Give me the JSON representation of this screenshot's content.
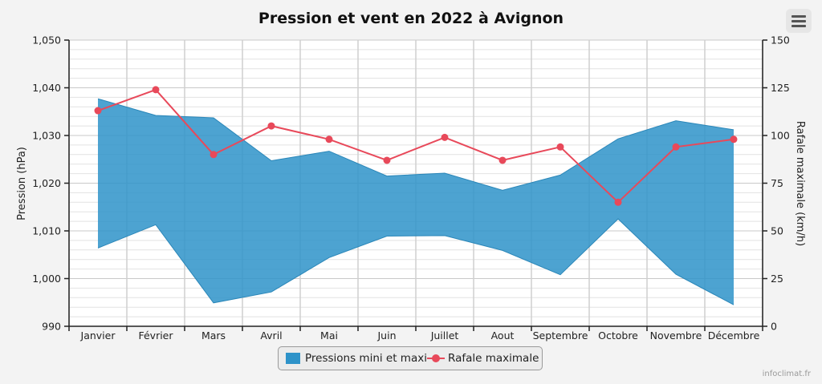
{
  "chart_data": {
    "type": "area",
    "title": "Pression et vent en 2022 à Avignon",
    "categories": [
      "Janvier",
      "Février",
      "Mars",
      "Avril",
      "Mai",
      "Juin",
      "Juillet",
      "Aout",
      "Septembre",
      "Octobre",
      "Novembre",
      "Décembre"
    ],
    "series": [
      {
        "name": "Pressions mini et maxi",
        "type": "arearange",
        "axis": "left",
        "color": "#2e93c9",
        "low": [
          1006.4,
          1011.3,
          994.9,
          997.2,
          1004.4,
          1008.9,
          1009.0,
          1005.9,
          1000.8,
          1012.5,
          1000.9,
          994.5
        ],
        "high": [
          1037.7,
          1034.2,
          1033.7,
          1024.7,
          1026.7,
          1021.5,
          1022.1,
          1018.5,
          1021.7,
          1029.3,
          1033.1,
          1031.2
        ]
      },
      {
        "name": "Rafale maximale",
        "type": "line",
        "axis": "right",
        "color": "#e8495a",
        "values": [
          113,
          124,
          90,
          105,
          98,
          87,
          99,
          87,
          94,
          65,
          94,
          98
        ]
      }
    ],
    "ylabel_left": "Pression (hPa)",
    "ylim_left": [
      990,
      1050
    ],
    "ytick_labels_left": [
      "990",
      "1,000",
      "1,010",
      "1,020",
      "1,030",
      "1,040",
      "1,050"
    ],
    "ylabel_right": "Rafale maximale (km/h)",
    "ylim_right": [
      0,
      150
    ],
    "ytick_labels_right": [
      "0",
      "25",
      "50",
      "75",
      "100",
      "125",
      "150"
    ],
    "grid": true,
    "legend_position": "bottom-center"
  },
  "legend": {
    "area_label": "Pressions mini et maxi",
    "line_label": "Rafale maximale"
  },
  "credit": "infoclimat.fr",
  "menu_icon": "hamburger-menu-icon"
}
